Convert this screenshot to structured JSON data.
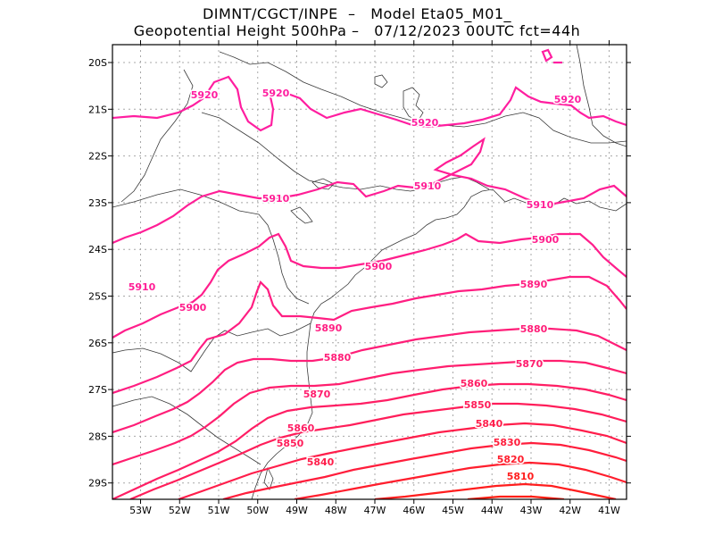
{
  "title": {
    "line1": "DIMNT/CGCT/INPE  –   Model Eta05_M01_",
    "line2": "Geopotential Height 500hPa –   07/12/2023 00UTC fct=44h"
  },
  "axes": {
    "lon_labels": [
      "53W",
      "52W",
      "51W",
      "50W",
      "49W",
      "48W",
      "47W",
      "46W",
      "45W",
      "44W",
      "43W",
      "42W",
      "41W"
    ],
    "lat_labels": [
      "20S",
      "21S",
      "22S",
      "23S",
      "24S",
      "25S",
      "26S",
      "27S",
      "28S",
      "29S"
    ]
  },
  "contours": [
    {
      "value": 5920,
      "labels": [
        "5920",
        "5920",
        "5920",
        "5920"
      ]
    },
    {
      "value": 5910,
      "labels": [
        "5910",
        "5910",
        "5910",
        "5910"
      ]
    },
    {
      "value": 5900,
      "labels": [
        "5900",
        "5900",
        "5900"
      ]
    },
    {
      "value": 5890,
      "labels": [
        "5890",
        "5890"
      ]
    },
    {
      "value": 5880,
      "labels": [
        "5880",
        "5880"
      ]
    },
    {
      "value": 5870,
      "labels": [
        "5870",
        "5870"
      ]
    },
    {
      "value": 5860,
      "labels": [
        "5860",
        "5860"
      ]
    },
    {
      "value": 5850,
      "labels": [
        "5850",
        "5850"
      ]
    },
    {
      "value": 5840,
      "labels": [
        "5840",
        "5840"
      ]
    },
    {
      "value": 5830,
      "labels": [
        "5830"
      ]
    },
    {
      "value": 5820,
      "labels": [
        "5820"
      ]
    },
    {
      "value": 5810,
      "labels": [
        "5810"
      ]
    }
  ],
  "colors": {
    "5920": "#ff1ea0",
    "5910": "#ff1e96",
    "5900": "#ff1e8c",
    "5890": "#ff1e82",
    "5880": "#ff1e78",
    "5870": "#ff1e6e",
    "5860": "#ff1e64",
    "5850": "#ff1e5a",
    "5840": "#ff1e4b",
    "5830": "#ff1e3c",
    "5820": "#ff1e2d",
    "5810": "#ff1e1e"
  }
}
